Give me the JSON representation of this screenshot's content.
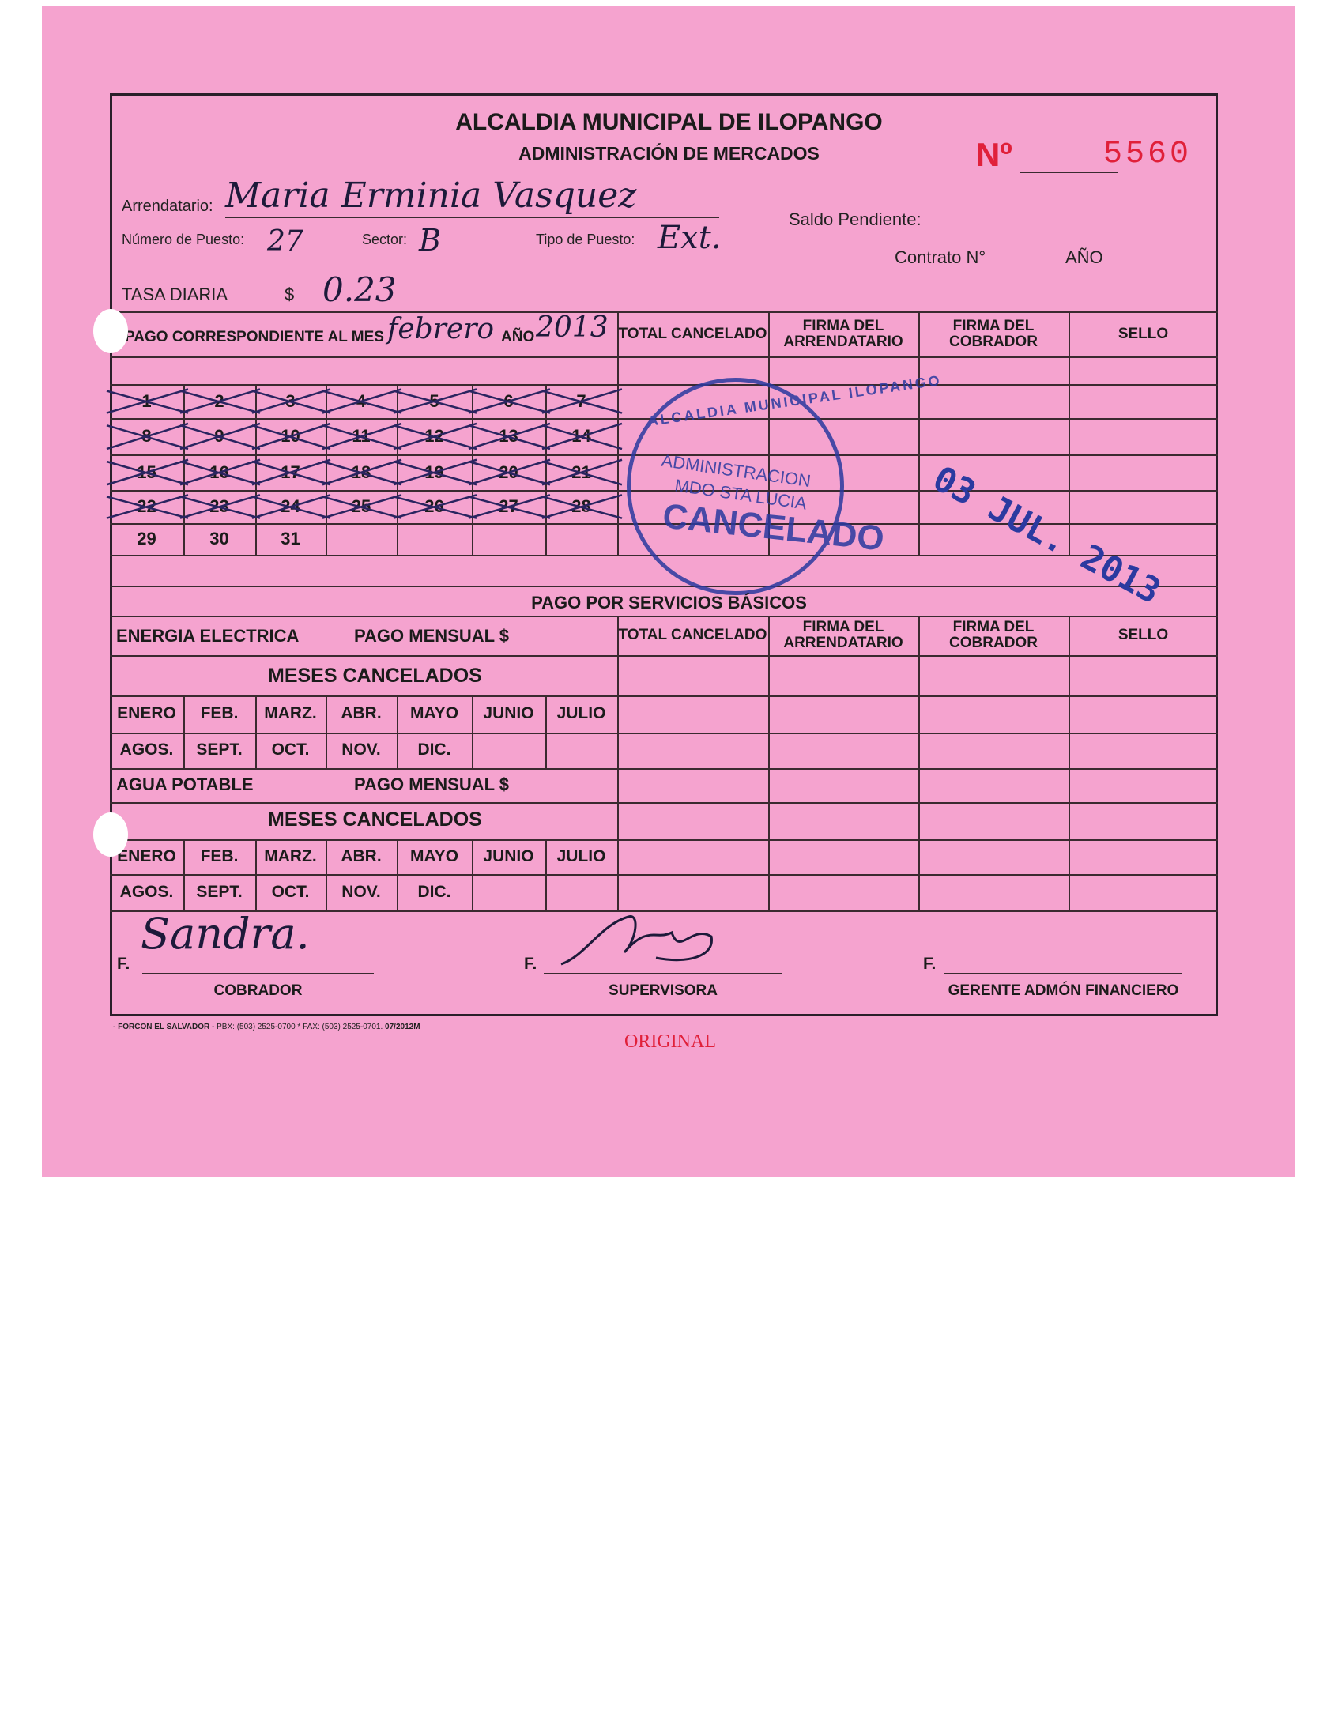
{
  "header": {
    "title": "ALCALDIA MUNICIPAL DE ILOPANGO",
    "subtitle": "ADMINISTRACIÓN DE MERCADOS",
    "number_label": "Nº",
    "number": "5560"
  },
  "fields": {
    "arrendatario_label": "Arrendatario:",
    "arrendatario": "Maria Erminia Vasquez",
    "puesto_label": "Número de Puesto:",
    "puesto": "27",
    "sector_label": "Sector:",
    "sector": "B",
    "tipo_label": "Tipo de Puesto:",
    "tipo": "Ext.",
    "saldo_label": "Saldo Pendiente:",
    "contrato_label": "Contrato N°",
    "anio_label": "AÑO",
    "tasa_label": "TASA DIARIA",
    "currency": "$",
    "tasa": "0.23"
  },
  "pago": {
    "label": "PAGO CORRESPONDIENTE AL MES",
    "mes": "febrero",
    "anio_label": "AÑO",
    "anio": "2013",
    "columns": [
      "TOTAL CANCELADO",
      "FIRMA DEL ARRENDATARIO",
      "FIRMA DEL COBRADOR",
      "SELLO"
    ],
    "days": [
      "1",
      "2",
      "3",
      "4",
      "5",
      "6",
      "7",
      "8",
      "9",
      "10",
      "11",
      "12",
      "13",
      "14",
      "15",
      "16",
      "17",
      "18",
      "19",
      "20",
      "21",
      "22",
      "23",
      "24",
      "25",
      "26",
      "27",
      "28",
      "29",
      "30",
      "31"
    ],
    "crossed_days": 28
  },
  "stamp": {
    "ring": "ALCALDIA MUNICIPAL ILOPANGO",
    "line1": "ADMINISTRACION",
    "line2": "MDO STA LUCIA",
    "line3": "CANCELADO",
    "color": "#2b3aa0"
  },
  "date_stamp": "03 JUL. 2013",
  "servicios": {
    "title": "PAGO POR SERVICIOS BÁSICOS",
    "energia": "ENERGIA ELECTRICA",
    "agua": "AGUA POTABLE",
    "pago_mensual": "PAGO MENSUAL $",
    "meses": "MESES CANCELADOS",
    "months_row1": [
      "ENERO",
      "FEB.",
      "MARZ.",
      "ABR.",
      "MAYO",
      "JUNIO",
      "JULIO"
    ],
    "months_row2": [
      "AGOS.",
      "SEPT.",
      "OCT.",
      "NOV.",
      "DIC."
    ]
  },
  "signatures": {
    "f": "F.",
    "cobrador": "COBRADOR",
    "cobrador_sig": "Sandra.",
    "supervisora": "SUPERVISORA",
    "gerente": "GERENTE ADMÓN FINANCIERO"
  },
  "footer": {
    "printer_name": "- FORCON EL SALVADOR",
    "printer_contact": " - PBX: (503) 2525-0700 * FAX: (503) 2525-0701. ",
    "printer_code": "07/2012M",
    "copy": "ORIGINAL"
  },
  "colors": {
    "paper": "#f5a3cf",
    "red": "#e0203a",
    "ink": "#1d1a3a"
  }
}
